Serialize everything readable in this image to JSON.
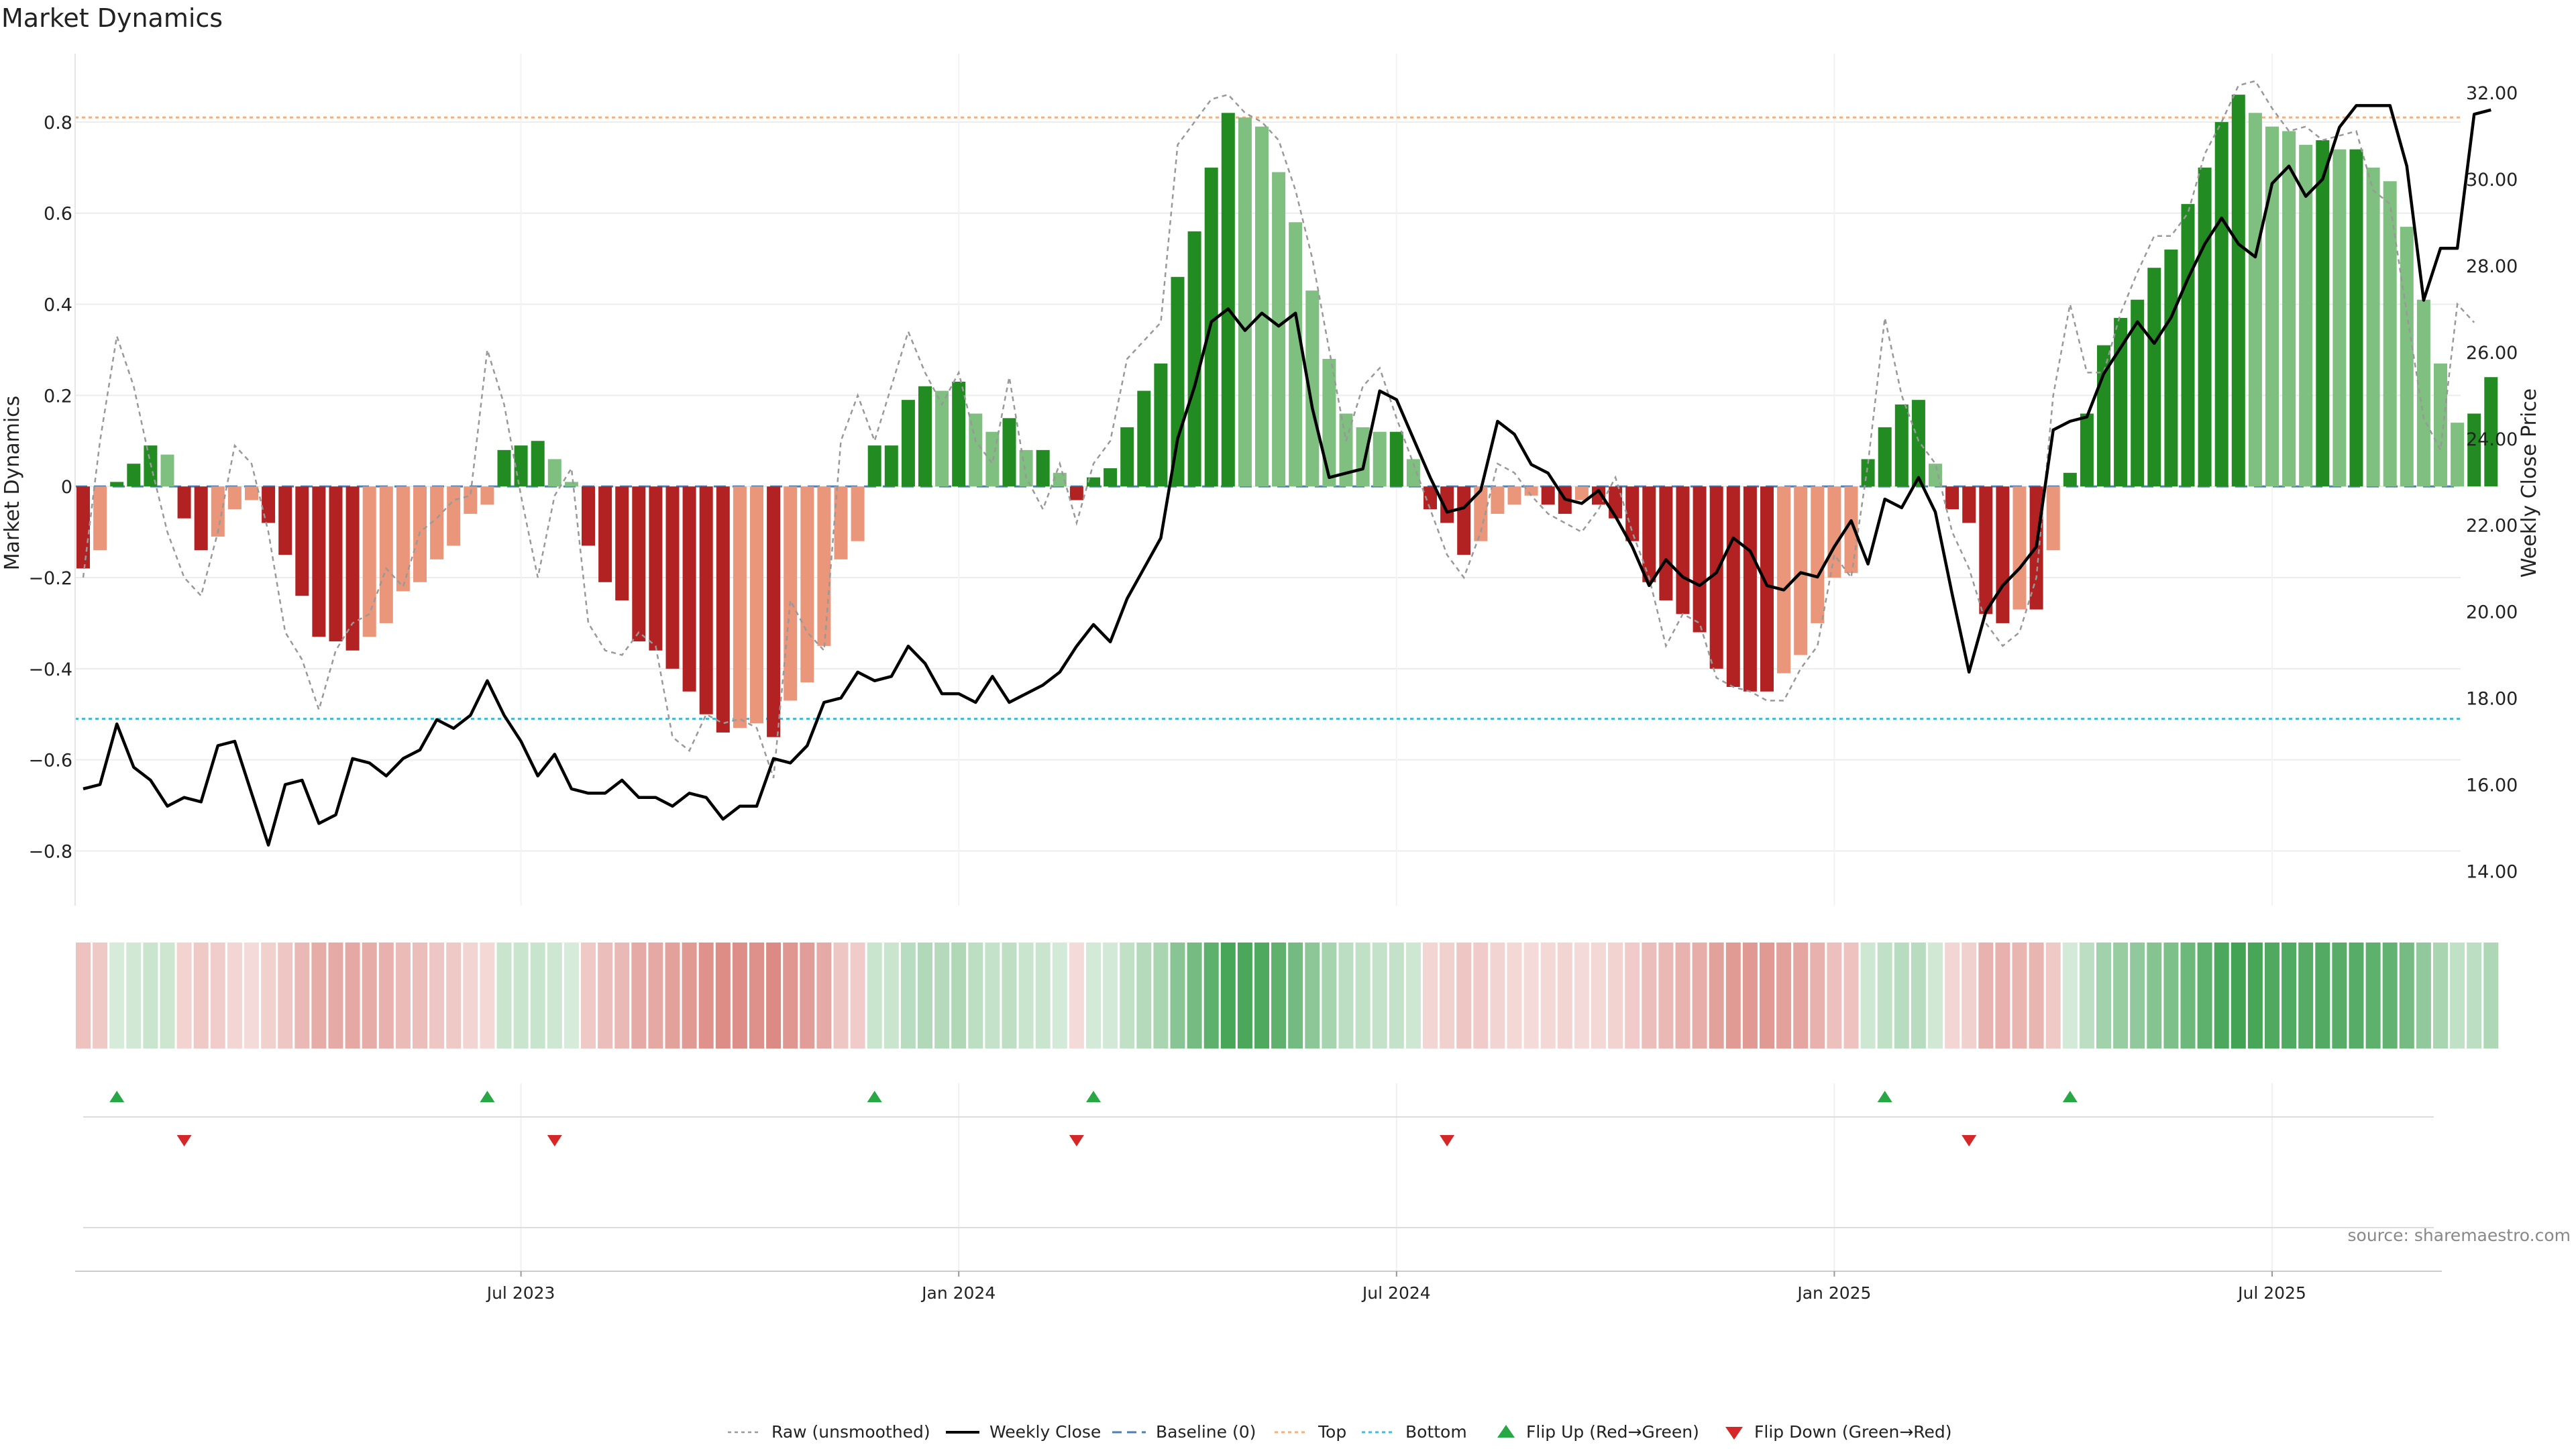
{
  "chart_data": {
    "type": "bar",
    "title": "Market Dynamics",
    "ylabel": "Market Dynamics",
    "ylabel_right": "Weekly Close Price",
    "source": "source: sharemaestro.com",
    "ylim": [
      -0.92,
      0.95
    ],
    "ylim_right": [
      13.2,
      32.9
    ],
    "ticks_left": [
      {
        "v": 0.8,
        "label": "0.8"
      },
      {
        "v": 0.6,
        "label": "0.6"
      },
      {
        "v": 0.4,
        "label": "0.4"
      },
      {
        "v": 0.2,
        "label": "0.2"
      },
      {
        "v": 0,
        "label": "0"
      },
      {
        "v": -0.2,
        "label": "−0.2"
      },
      {
        "v": -0.4,
        "label": "−0.4"
      },
      {
        "v": -0.6,
        "label": "−0.6"
      },
      {
        "v": -0.8,
        "label": "−0.8"
      }
    ],
    "ticks_right": [
      {
        "v": 32,
        "label": "32.00"
      },
      {
        "v": 30,
        "label": "30.00"
      },
      {
        "v": 28,
        "label": "28.00"
      },
      {
        "v": 26,
        "label": "26.00"
      },
      {
        "v": 24,
        "label": "24.00"
      },
      {
        "v": 22,
        "label": "22.00"
      },
      {
        "v": 20,
        "label": "20.00"
      },
      {
        "v": 18,
        "label": "18.00"
      },
      {
        "v": 16,
        "label": "16.00"
      },
      {
        "v": 14,
        "label": "14.00"
      }
    ],
    "x_ticks": [
      {
        "week": 26,
        "label": "Jul 2023"
      },
      {
        "week": 52,
        "label": "Jan 2024"
      },
      {
        "week": 78,
        "label": "Jul 2024"
      },
      {
        "week": 104,
        "label": "Jan 2025"
      },
      {
        "week": 130,
        "label": "Jul 2025"
      }
    ],
    "top_level": 0.81,
    "bottom_level": -0.51,
    "dynamics": [
      -0.18,
      -0.14,
      0.01,
      0.05,
      0.09,
      0.07,
      -0.07,
      -0.14,
      -0.11,
      -0.05,
      -0.03,
      -0.08,
      -0.15,
      -0.24,
      -0.33,
      -0.34,
      -0.36,
      -0.33,
      -0.3,
      -0.23,
      -0.21,
      -0.16,
      -0.13,
      -0.06,
      -0.04,
      0.08,
      0.09,
      0.1,
      0.06,
      0.01,
      -0.13,
      -0.21,
      -0.25,
      -0.34,
      -0.36,
      -0.4,
      -0.45,
      -0.5,
      -0.54,
      -0.53,
      -0.52,
      -0.55,
      -0.47,
      -0.43,
      -0.35,
      -0.16,
      -0.12,
      0.09,
      0.09,
      0.19,
      0.22,
      0.21,
      0.23,
      0.16,
      0.12,
      0.15,
      0.08,
      0.08,
      0.03,
      -0.03,
      0.02,
      0.04,
      0.13,
      0.21,
      0.27,
      0.46,
      0.56,
      0.7,
      0.82,
      0.81,
      0.79,
      0.69,
      0.58,
      0.43,
      0.28,
      0.16,
      0.13,
      0.12,
      0.12,
      0.06,
      -0.05,
      -0.08,
      -0.15,
      -0.12,
      -0.06,
      -0.04,
      -0.02,
      -0.04,
      -0.06,
      -0.03,
      -0.04,
      -0.07,
      -0.12,
      -0.21,
      -0.25,
      -0.28,
      -0.32,
      -0.4,
      -0.44,
      -0.45,
      -0.45,
      -0.41,
      -0.37,
      -0.3,
      -0.2,
      -0.19,
      0.06,
      0.13,
      0.18,
      0.19,
      0.05,
      -0.05,
      -0.08,
      -0.28,
      -0.3,
      -0.27,
      -0.27,
      -0.14,
      0.03,
      0.16,
      0.31,
      0.37,
      0.41,
      0.48,
      0.52,
      0.62,
      0.7,
      0.8,
      0.86,
      0.82,
      0.79,
      0.78,
      0.75,
      0.76,
      0.74,
      0.74,
      0.7,
      0.67,
      0.57,
      0.41,
      0.27,
      0.14,
      0.16,
      0.24
    ],
    "weekly_close": [
      15.9,
      16.0,
      17.4,
      16.4,
      16.1,
      15.5,
      15.7,
      15.6,
      16.9,
      17.0,
      15.8,
      14.6,
      16.0,
      16.1,
      15.1,
      15.3,
      16.6,
      16.5,
      16.2,
      16.6,
      16.8,
      17.5,
      17.3,
      17.6,
      18.4,
      17.6,
      17.0,
      16.2,
      16.7,
      15.9,
      15.8,
      15.8,
      16.1,
      15.7,
      15.7,
      15.5,
      15.8,
      15.7,
      15.2,
      15.5,
      15.5,
      16.6,
      16.5,
      16.9,
      17.9,
      18.0,
      18.6,
      18.4,
      18.5,
      19.2,
      18.8,
      18.1,
      18.1,
      17.9,
      18.5,
      17.9,
      18.1,
      18.3,
      18.6,
      19.2,
      19.7,
      19.3,
      20.3,
      21.0,
      21.7,
      24.0,
      25.2,
      26.7,
      27.0,
      26.5,
      26.9,
      26.6,
      26.9,
      24.7,
      23.1,
      23.2,
      23.3,
      25.1,
      24.9,
      24.0,
      23.1,
      22.3,
      22.4,
      22.8,
      24.4,
      24.1,
      23.4,
      23.2,
      22.6,
      22.5,
      22.8,
      22.2,
      21.5,
      20.6,
      21.2,
      20.8,
      20.6,
      20.9,
      21.7,
      21.4,
      20.6,
      20.5,
      20.9,
      20.8,
      21.5,
      22.1,
      21.1,
      22.6,
      22.4,
      23.1,
      22.3,
      20.4,
      18.6,
      20.0,
      20.6,
      21.0,
      21.5,
      24.2,
      24.4,
      24.5,
      25.5,
      26.1,
      26.7,
      26.2,
      26.8,
      27.7,
      28.5,
      29.1,
      28.5,
      28.2,
      29.9,
      30.3,
      29.6,
      30.0,
      31.2,
      31.7,
      31.7,
      31.7,
      30.3,
      27.2,
      28.4,
      28.4,
      31.5,
      31.6
    ],
    "raw": [
      -0.2,
      0.1,
      0.33,
      0.22,
      0.05,
      -0.1,
      -0.2,
      -0.24,
      -0.1,
      0.09,
      0.05,
      -0.1,
      -0.32,
      -0.38,
      -0.49,
      -0.36,
      -0.3,
      -0.28,
      -0.18,
      -0.22,
      -0.1,
      -0.07,
      -0.03,
      -0.02,
      0.3,
      0.18,
      -0.02,
      -0.2,
      -0.02,
      0.04,
      -0.3,
      -0.36,
      -0.37,
      -0.32,
      -0.35,
      -0.55,
      -0.58,
      -0.5,
      -0.52,
      -0.51,
      -0.53,
      -0.64,
      -0.25,
      -0.32,
      -0.36,
      0.1,
      0.2,
      0.1,
      0.22,
      0.34,
      0.25,
      0.18,
      0.25,
      0.1,
      0.05,
      0.24,
      0.02,
      -0.05,
      0.05,
      -0.08,
      0.05,
      0.1,
      0.28,
      0.32,
      0.36,
      0.75,
      0.8,
      0.85,
      0.86,
      0.82,
      0.8,
      0.76,
      0.65,
      0.5,
      0.3,
      0.1,
      0.22,
      0.26,
      0.15,
      0.05,
      -0.05,
      -0.15,
      -0.2,
      -0.1,
      0.05,
      0.03,
      -0.02,
      -0.06,
      -0.08,
      -0.1,
      -0.05,
      0.02,
      -0.1,
      -0.2,
      -0.35,
      -0.28,
      -0.3,
      -0.42,
      -0.44,
      -0.45,
      -0.47,
      -0.47,
      -0.4,
      -0.35,
      -0.15,
      -0.2,
      0.05,
      0.37,
      0.2,
      0.1,
      0.05,
      -0.1,
      -0.18,
      -0.3,
      -0.35,
      -0.32,
      -0.2,
      0.2,
      0.4,
      0.25,
      0.25,
      0.38,
      0.47,
      0.55,
      0.55,
      0.6,
      0.73,
      0.8,
      0.88,
      0.89,
      0.83,
      0.78,
      0.79,
      0.76,
      0.77,
      0.78,
      0.65,
      0.62,
      0.38,
      0.15,
      0.08,
      0.4,
      0.36
    ],
    "flip_up_weeks": [
      2,
      24,
      47,
      60,
      107,
      118
    ],
    "flip_down_weeks": [
      6,
      28,
      59,
      81,
      112
    ],
    "colors": {
      "strong_green": "#228b22",
      "light_green": "#7fbf7f",
      "strong_red": "#b22222",
      "light_red": "#e9967a",
      "close_line": "#000000",
      "raw_line": "#999999",
      "baseline": "#4f7fb0",
      "top_line": "#f0b080",
      "bottom_line": "#4ab8d8",
      "flip_up": "#28a745",
      "flip_down": "#d62728"
    },
    "legend": [
      {
        "key": "raw",
        "label": "Raw (unsmoothed)"
      },
      {
        "key": "close",
        "label": "Weekly Close"
      },
      {
        "key": "baseline",
        "label": "Baseline (0)"
      },
      {
        "key": "top",
        "label": "Top"
      },
      {
        "key": "bottom",
        "label": "Bottom"
      },
      {
        "key": "flipup",
        "label": "Flip Up (Red→Green)"
      },
      {
        "key": "flipdown",
        "label": "Flip Down (Green→Red)"
      }
    ],
    "legend_position": "bottom-center",
    "grid": true
  }
}
